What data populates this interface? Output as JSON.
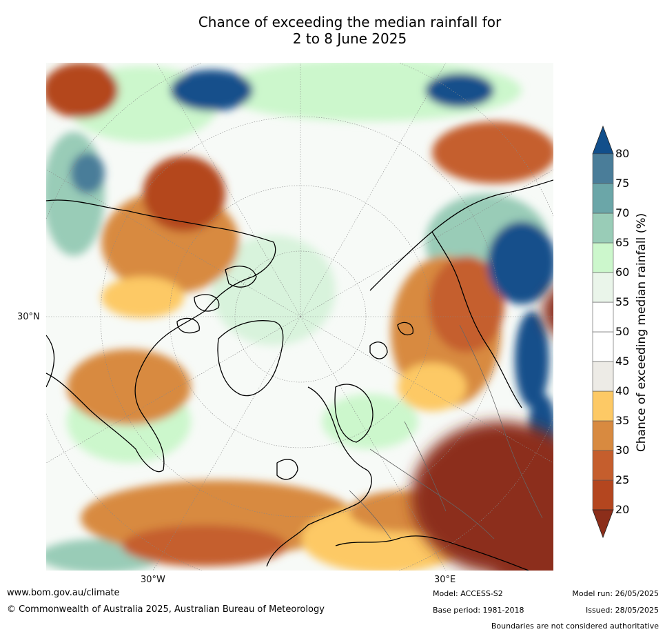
{
  "title": {
    "line1": "Chance of exceeding the median rainfall for",
    "line2": "2 to 8 June 2025"
  },
  "map": {
    "projection": "north-polar-stereographic",
    "lon_labels": [
      "30°W",
      "30°E"
    ],
    "lat_labels": [
      "30°N"
    ]
  },
  "colorbar": {
    "title": "Chance of exceeding median rainfall (%)",
    "ticks": [
      "20",
      "25",
      "30",
      "35",
      "40",
      "45",
      "50",
      "55",
      "60",
      "65",
      "70",
      "75",
      "80"
    ],
    "colors": [
      "#b4461f",
      "#c55e2d",
      "#d88a40",
      "#fdc965",
      "#edebe6",
      "#ffffff",
      "#ffffff",
      "#eaf5ea",
      "#ccf7cc",
      "#99ccb7",
      "#6ba6a8",
      "#4a7d99"
    ],
    "under_color": "#8c2e1a",
    "over_color": "#124f8b"
  },
  "footer": {
    "url": "www.bom.gov.au/climate",
    "copyright": "© Commonwealth of Australia 2025, Australian Bureau of Meteorology",
    "model": "Model: ACCESS-S2",
    "base_period": "Base period: 1981-2018",
    "model_run": "Model run: 26/05/2025",
    "issued": "Issued: 28/05/2025",
    "disclaimer": "Boundaries are not considered authoritative"
  }
}
